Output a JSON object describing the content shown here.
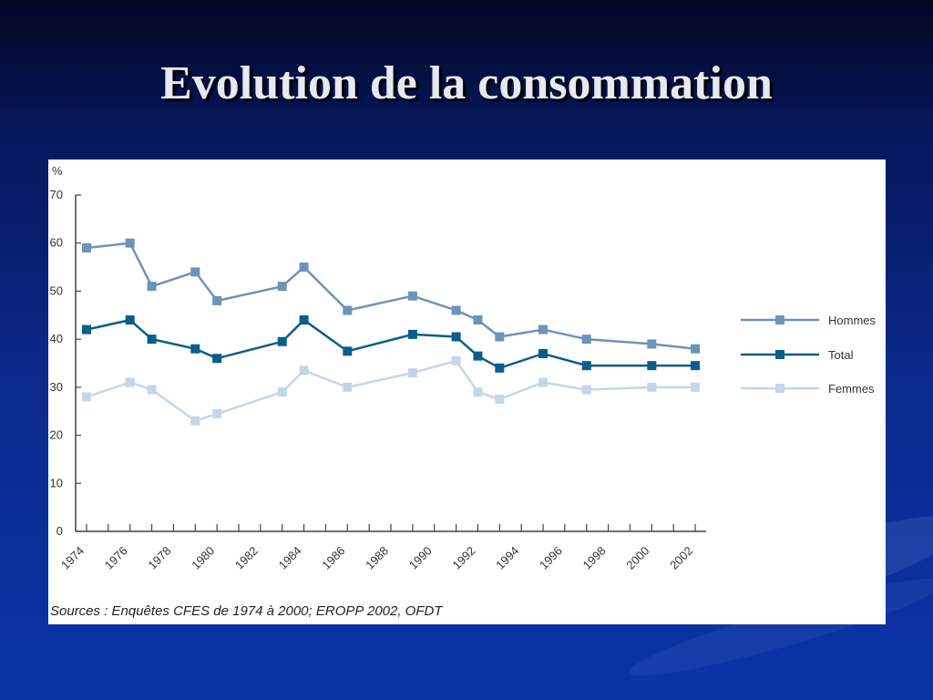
{
  "slide": {
    "title": "Evolution de la consommation"
  },
  "colors": {
    "Hommes": "#6d93bb",
    "Total": "#0b5d8c",
    "Femmes": "#c5d6e8"
  },
  "chart_data": {
    "type": "line",
    "ylabel": "%",
    "ylim": [
      0,
      70
    ],
    "yticks": [
      0,
      10,
      20,
      30,
      40,
      50,
      60,
      70
    ],
    "xlim": [
      1974,
      2002.5
    ],
    "xticks": [
      "1974",
      "1976",
      "1978",
      "1980",
      "1982",
      "1984",
      "1986",
      "1988",
      "1990",
      "1992",
      "1994",
      "1996",
      "1998",
      "2000",
      "2002"
    ],
    "grid": false,
    "legend_position": "right",
    "series": [
      {
        "name": "Hommes",
        "x": [
          1974,
          1976,
          1977,
          1979,
          1980,
          1983,
          1984,
          1986,
          1989,
          1991,
          1992,
          1993,
          1995,
          1997,
          2000,
          2002
        ],
        "values": [
          59,
          60,
          51,
          54,
          48,
          51,
          55,
          46,
          49,
          46,
          44,
          40.5,
          42,
          40,
          39,
          38
        ]
      },
      {
        "name": "Total",
        "x": [
          1974,
          1976,
          1977,
          1979,
          1980,
          1983,
          1984,
          1986,
          1989,
          1991,
          1992,
          1993,
          1995,
          1997,
          2000,
          2002
        ],
        "values": [
          42,
          44,
          40,
          38,
          36,
          39.5,
          44,
          37.5,
          41,
          40.5,
          36.5,
          34,
          37,
          34.5,
          34.5,
          34.5
        ]
      },
      {
        "name": "Femmes",
        "x": [
          1974,
          1976,
          1977,
          1979,
          1980,
          1983,
          1984,
          1986,
          1989,
          1991,
          1992,
          1993,
          1995,
          1997,
          2000,
          2002
        ],
        "values": [
          28,
          31,
          29.5,
          23,
          24.5,
          29,
          33.5,
          30,
          33,
          35.5,
          29,
          27.5,
          31,
          29.5,
          30,
          30
        ]
      }
    ],
    "source": "Sources : Enquêtes CFES de 1974 à 2000; EROPP 2002, OFDT"
  }
}
